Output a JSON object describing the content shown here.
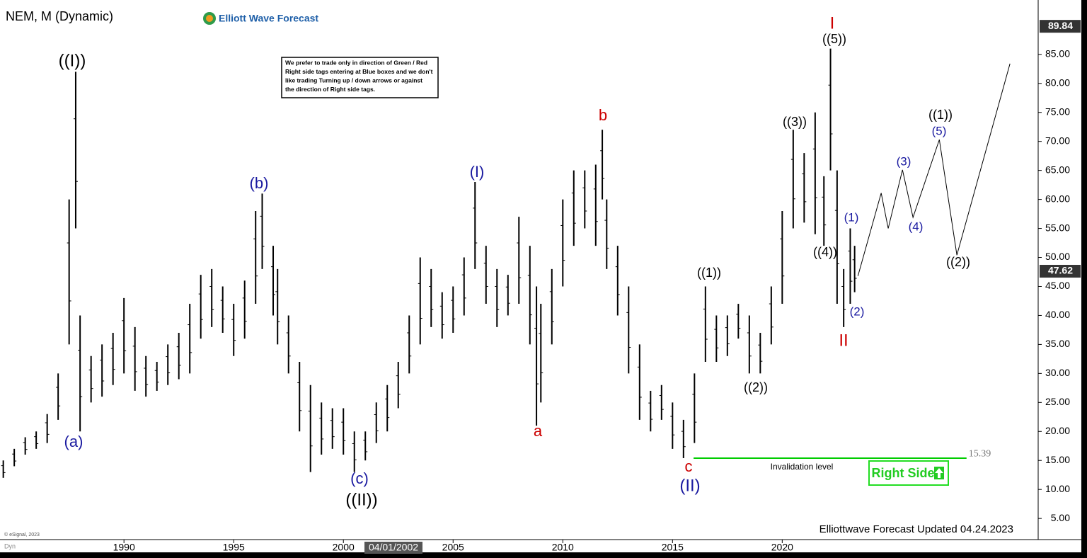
{
  "chart_data": {
    "type": "ohlc",
    "title": "NEM, M (Dynamic)",
    "logo": "Elliott Wave Forecast",
    "note": [
      "We prefer to trade only in direction of Green / Red",
      "Right side tags entering at Blue boxes and we don't",
      "like trading Turning up / down arrows or against",
      "the direction of Right side tags."
    ],
    "footer": "Elliottwave Forecast Updated 04.24.2023",
    "source": "© eSignal, 2023",
    "dyn": "Dyn",
    "cursor_date": "04/01/2002",
    "right_side": "Right Side",
    "color": "#000000",
    "xlim": [
      1984.35,
      2031.6
    ],
    "xticks": [
      1990,
      1995,
      2000,
      2005,
      2010,
      2015,
      2020
    ],
    "ylim": [
      1.6,
      93.4
    ],
    "yticks": [
      {
        "value": 5,
        "label": "5.00"
      },
      {
        "value": 10,
        "label": "10.00"
      },
      {
        "value": 15,
        "label": "15.00"
      },
      {
        "value": 20,
        "label": "20.00"
      },
      {
        "value": 25,
        "label": "25.00"
      },
      {
        "value": 30,
        "label": "30.00"
      },
      {
        "value": 35,
        "label": "35.00"
      },
      {
        "value": 40,
        "label": "40.00"
      },
      {
        "value": 45,
        "label": "45.00"
      },
      {
        "value": 50,
        "label": "50.00"
      },
      {
        "value": 55,
        "label": "55.00"
      },
      {
        "value": 60,
        "label": "60.00"
      },
      {
        "value": 65,
        "label": "65.00"
      },
      {
        "value": 70,
        "label": "70.00"
      },
      {
        "value": 75,
        "label": "75.00"
      },
      {
        "value": 80,
        "label": "80.00"
      },
      {
        "value": 85,
        "label": "85.00"
      }
    ],
    "price_tags": [
      89.84,
      47.62
    ],
    "x": [
      1984.5,
      1985,
      1985.5,
      1986,
      1986.5,
      1987,
      1987.5,
      1987.8,
      1988,
      1988.5,
      1989,
      1989.5,
      1990,
      1990.5,
      1991,
      1991.5,
      1992,
      1992.5,
      1993,
      1993.5,
      1994,
      1994.5,
      1995,
      1995.5,
      1996,
      1996.3,
      1996.8,
      1997,
      1997.5,
      1998,
      1998.5,
      1999,
      1999.5,
      2000,
      2000.5,
      2001,
      2001.5,
      2002,
      2002.5,
      2003,
      2003.5,
      2004,
      2004.5,
      2005,
      2005.5,
      2006,
      2006.5,
      2007,
      2007.5,
      2008,
      2008.5,
      2008.8,
      2009,
      2009.5,
      2010,
      2010.5,
      2011,
      2011.5,
      2011.8,
      2012,
      2012.5,
      2013,
      2013.5,
      2014,
      2014.5,
      2015,
      2015.5,
      2016,
      2016.5,
      2017,
      2017.5,
      2018,
      2018.5,
      2019,
      2019.5,
      2020,
      2020.5,
      2021,
      2021.5,
      2021.9,
      2022.2,
      2022.5,
      2022.8,
      2023.1,
      2023.3
    ],
    "low": [
      12,
      14,
      16,
      17,
      18,
      22,
      35,
      55,
      20,
      25,
      26,
      28,
      30,
      27,
      26,
      27,
      28,
      29,
      30,
      36,
      38,
      37,
      33,
      36,
      42,
      48,
      40,
      35,
      30,
      20,
      13,
      16,
      17,
      16,
      13,
      15,
      18,
      20,
      24,
      30,
      35,
      38,
      36,
      37,
      40,
      48,
      42,
      38,
      40,
      42,
      35,
      21,
      25,
      35,
      45,
      52,
      55,
      52,
      60,
      48,
      40,
      30,
      22,
      20,
      22,
      17,
      15.4,
      18,
      32,
      32,
      33,
      36,
      30,
      30,
      35,
      42,
      55,
      56,
      54,
      52,
      65,
      42,
      38,
      42,
      44
    ],
    "high": [
      15,
      17,
      19,
      20,
      23,
      30,
      60,
      82,
      40,
      33,
      35,
      37,
      43,
      38,
      33,
      32,
      35,
      37,
      42,
      47,
      48,
      45,
      42,
      46,
      58,
      61,
      52,
      48,
      40,
      32,
      28,
      25,
      24,
      24,
      20,
      20,
      25,
      28,
      32,
      40,
      50,
      48,
      44,
      45,
      50,
      63,
      52,
      48,
      47,
      57,
      52,
      45,
      42,
      48,
      60,
      65,
      65,
      66,
      72,
      60,
      52,
      45,
      35,
      27,
      28,
      25,
      22,
      30,
      45,
      40,
      40,
      42,
      40,
      37,
      45,
      58,
      72,
      68,
      75,
      64,
      86,
      65,
      48,
      55,
      52
    ],
    "projection": {
      "x": [
        2023.45,
        2024.51,
        2024.83,
        2025.48,
        2025.96,
        2027.16,
        2027.96,
        2030.38
      ],
      "values": [
        46.8,
        61.1,
        55,
        65.1,
        56.9,
        70.3,
        50.4,
        83.4
      ]
    },
    "invalidation": {
      "level": 15.39,
      "text": "Invalidation level",
      "x": [
        2015.96,
        2028.4
      ],
      "color": "#00cc00"
    },
    "annotations": [
      {
        "text": "((I))",
        "color": "#000000"
      },
      {
        "text": "(a)",
        "color": "#1a1aa0"
      },
      {
        "text": "(b)",
        "color": "#1a1aa0"
      },
      {
        "text": "(c)",
        "color": "#1a1aa0"
      },
      {
        "text": "((II))",
        "color": "#000000"
      },
      {
        "text": "(I)",
        "color": "#1a1aa0"
      },
      {
        "text": "a",
        "color": "#cc0000"
      },
      {
        "text": "b",
        "color": "#cc0000"
      },
      {
        "text": "c",
        "color": "#cc0000"
      },
      {
        "text": "(II)",
        "color": "#1a1aa0"
      },
      {
        "text": "((1))",
        "color": "#000000"
      },
      {
        "text": "((2))",
        "color": "#000000"
      },
      {
        "text": "((3))",
        "color": "#000000"
      },
      {
        "text": "((4))",
        "color": "#000000"
      },
      {
        "text": "((5))",
        "color": "#000000"
      },
      {
        "text": "I",
        "color": "#cc0000"
      },
      {
        "text": "II",
        "color": "#cc0000"
      },
      {
        "text": "(1)",
        "color": "#1a1aa0"
      },
      {
        "text": "(2)",
        "color": "#1a1aa0"
      },
      {
        "text": "(3)",
        "color": "#1a1aa0"
      },
      {
        "text": "(4)",
        "color": "#1a1aa0"
      },
      {
        "text": "(5)",
        "color": "#1a1aa0"
      },
      {
        "text": "((1))",
        "color": "#000000"
      },
      {
        "text": "((2))",
        "color": "#000000"
      }
    ]
  }
}
